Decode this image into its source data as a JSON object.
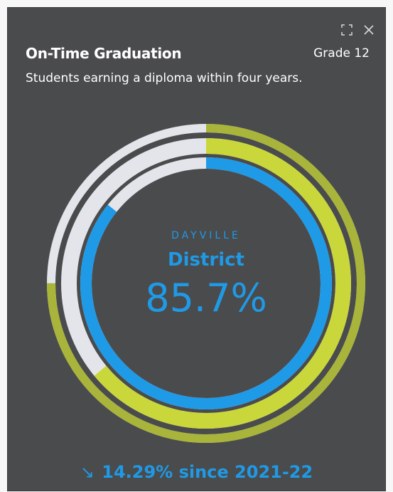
{
  "card": {
    "title": "On-Time Graduation",
    "grade": "Grade 12",
    "subtitle": "Students earning a diploma within four years.",
    "expand_icon": "expand-icon",
    "close_icon": "close-icon"
  },
  "center": {
    "label": "DAYVILLE",
    "entity": "District",
    "value": "85.7%"
  },
  "footer": {
    "arrow": "↘",
    "change": "14.29% since 2021-22"
  },
  "colors": {
    "card_bg": "#4a4b4d",
    "blue": "#1f9ae6",
    "yellow_green": "#cad73a",
    "olive": "#a9b43a",
    "track": "#e4e5ea",
    "text": "#ffffff"
  },
  "chart_data": {
    "type": "radial-progress",
    "rings": [
      {
        "ring": "outer",
        "value": 0.75,
        "color": "#a9b43a"
      },
      {
        "ring": "middle",
        "value": 0.64,
        "color": "#cad73a"
      },
      {
        "ring": "inner",
        "value": 0.857,
        "color": "#1f9ae6"
      }
    ]
  }
}
